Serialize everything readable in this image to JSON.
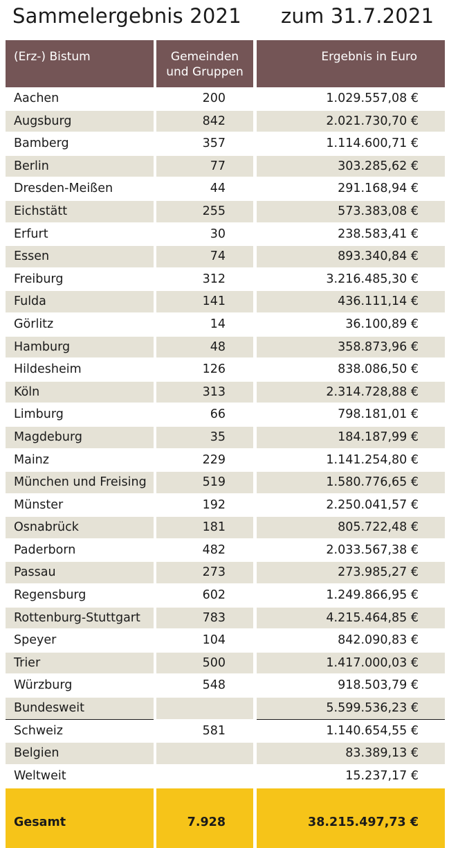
{
  "title": "Sammelergebnis 2021",
  "date_label": "zum 31.7.2021",
  "headers": {
    "col1": "(Erz-) Bistum",
    "col2_line1": "Gemeinden",
    "col2_line2": "und Gruppen",
    "col3": "Ergebnis in Euro"
  },
  "rows": [
    {
      "name": "Aachen",
      "count": "200",
      "amount": "1.029.557,08 €"
    },
    {
      "name": "Augsburg",
      "count": "842",
      "amount": "2.021.730,70 €"
    },
    {
      "name": "Bamberg",
      "count": "357",
      "amount": "1.114.600,71 €"
    },
    {
      "name": "Berlin",
      "count": "77",
      "amount": "303.285,62 €"
    },
    {
      "name": "Dresden-Meißen",
      "count": "44",
      "amount": "291.168,94 €"
    },
    {
      "name": "Eichstätt",
      "count": "255",
      "amount": "573.383,08 €"
    },
    {
      "name": "Erfurt",
      "count": "30",
      "amount": "238.583,41 €"
    },
    {
      "name": "Essen",
      "count": "74",
      "amount": "893.340,84 €"
    },
    {
      "name": "Freiburg",
      "count": "312",
      "amount": "3.216.485,30 €"
    },
    {
      "name": "Fulda",
      "count": "141",
      "amount": "436.111,14 €"
    },
    {
      "name": "Görlitz",
      "count": "14",
      "amount": "36.100,89 €"
    },
    {
      "name": "Hamburg",
      "count": "48",
      "amount": "358.873,96 €"
    },
    {
      "name": "Hildesheim",
      "count": "126",
      "amount": "838.086,50 €"
    },
    {
      "name": "Köln",
      "count": "313",
      "amount": "2.314.728,88 €"
    },
    {
      "name": "Limburg",
      "count": "66",
      "amount": "798.181,01 €"
    },
    {
      "name": "Magdeburg",
      "count": "35",
      "amount": "184.187,99 €"
    },
    {
      "name": "Mainz",
      "count": "229",
      "amount": "1.141.254,80 €"
    },
    {
      "name": "München und Freising",
      "count": "519",
      "amount": "1.580.776,65 €"
    },
    {
      "name": "Münster",
      "count": "192",
      "amount": "2.250.041,57 €"
    },
    {
      "name": "Osnabrück",
      "count": "181",
      "amount": "805.722,48 €"
    },
    {
      "name": "Paderborn",
      "count": "482",
      "amount": "2.033.567,38 €"
    },
    {
      "name": "Passau",
      "count": "273",
      "amount": "273.985,27 €"
    },
    {
      "name": "Regensburg",
      "count": "602",
      "amount": "1.249.866,95 €"
    },
    {
      "name": "Rottenburg-Stuttgart",
      "count": "783",
      "amount": "4.215.464,85 €"
    },
    {
      "name": "Speyer",
      "count": "104",
      "amount": "842.090,83 €"
    },
    {
      "name": "Trier",
      "count": "500",
      "amount": "1.417.000,03 €"
    },
    {
      "name": "Würzburg",
      "count": "548",
      "amount": "918.503,79 €"
    },
    {
      "name": "Bundesweit",
      "count": "",
      "amount": "5.599.536,23 €"
    },
    {
      "name": "Schweiz",
      "count": "581",
      "amount": "1.140.654,55 €"
    },
    {
      "name": "Belgien",
      "count": "",
      "amount": "83.389,13 €"
    },
    {
      "name": "Weltweit",
      "count": "",
      "amount": "15.237,17 €"
    }
  ],
  "total": {
    "label": "Gesamt",
    "count": "7.928",
    "amount": "38.215.497,73 €"
  },
  "colors": {
    "header_bg": "#745556",
    "shade_bg": "#e5e2d6",
    "total_bg": "#f6c419"
  }
}
